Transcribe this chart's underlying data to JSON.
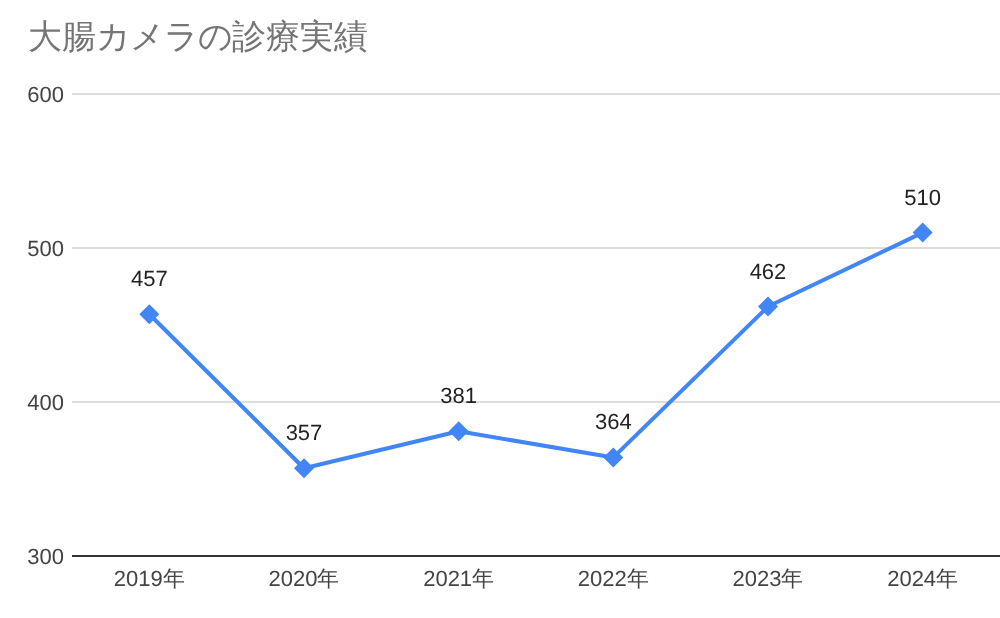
{
  "chart_data": {
    "type": "line",
    "title": "大腸カメラの診療実績",
    "categories": [
      "2019年",
      "2020年",
      "2021年",
      "2022年",
      "2023年",
      "2024年"
    ],
    "series": [
      {
        "color": "#4285f4",
        "values": [
          457,
          357,
          381,
          364,
          462,
          510
        ]
      }
    ],
    "ylim": [
      300,
      600
    ],
    "yticks": [
      300,
      400,
      500,
      600
    ],
    "grid": "y",
    "marker": "diamond",
    "data_labels": true
  }
}
